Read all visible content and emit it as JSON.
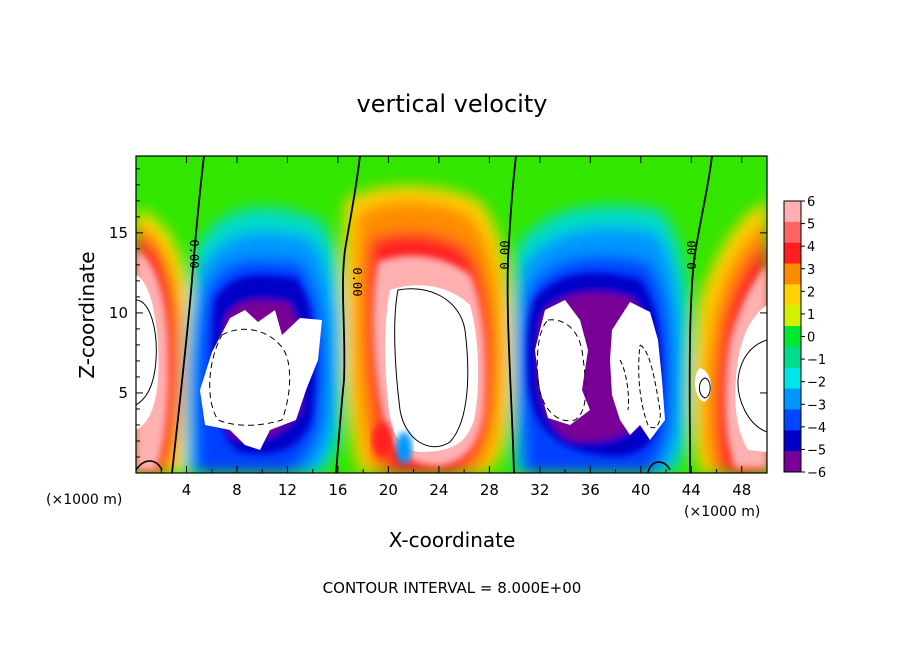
{
  "chart_data": {
    "type": "heatmap",
    "title": "vertical velocity",
    "xlabel": "X-coordinate",
    "ylabel": "Z-coordinate",
    "x_unit": "(×1000 m)",
    "x_unit_right": "(×1000 m)",
    "xlim": [
      0,
      50
    ],
    "ylim": [
      0,
      19.8
    ],
    "xticks": [
      "4",
      "8",
      "12",
      "16",
      "20",
      "24",
      "28",
      "32",
      "36",
      "40",
      "44",
      "48"
    ],
    "yticks": [
      "5",
      "10",
      "15"
    ],
    "colorbar": {
      "ticks": [
        "6",
        "5",
        "4",
        "3",
        "2",
        "1",
        "0",
        "−1",
        "−2",
        "−3",
        "−4",
        "−5",
        "−6"
      ],
      "colors": [
        "#ffb0b0",
        "#ff6464",
        "#ff1e1e",
        "#ff8c00",
        "#ffd200",
        "#d2f000",
        "#00e632",
        "#00dc8c",
        "#00e6e6",
        "#0096ff",
        "#0046ff",
        "#0000c8",
        "#780096"
      ]
    },
    "contour_labels": [
      "0.00",
      "0.00",
      "0.00",
      "0.00"
    ],
    "contour_interval_text": "CONTOUR INTERVAL = 8.000E+00"
  }
}
